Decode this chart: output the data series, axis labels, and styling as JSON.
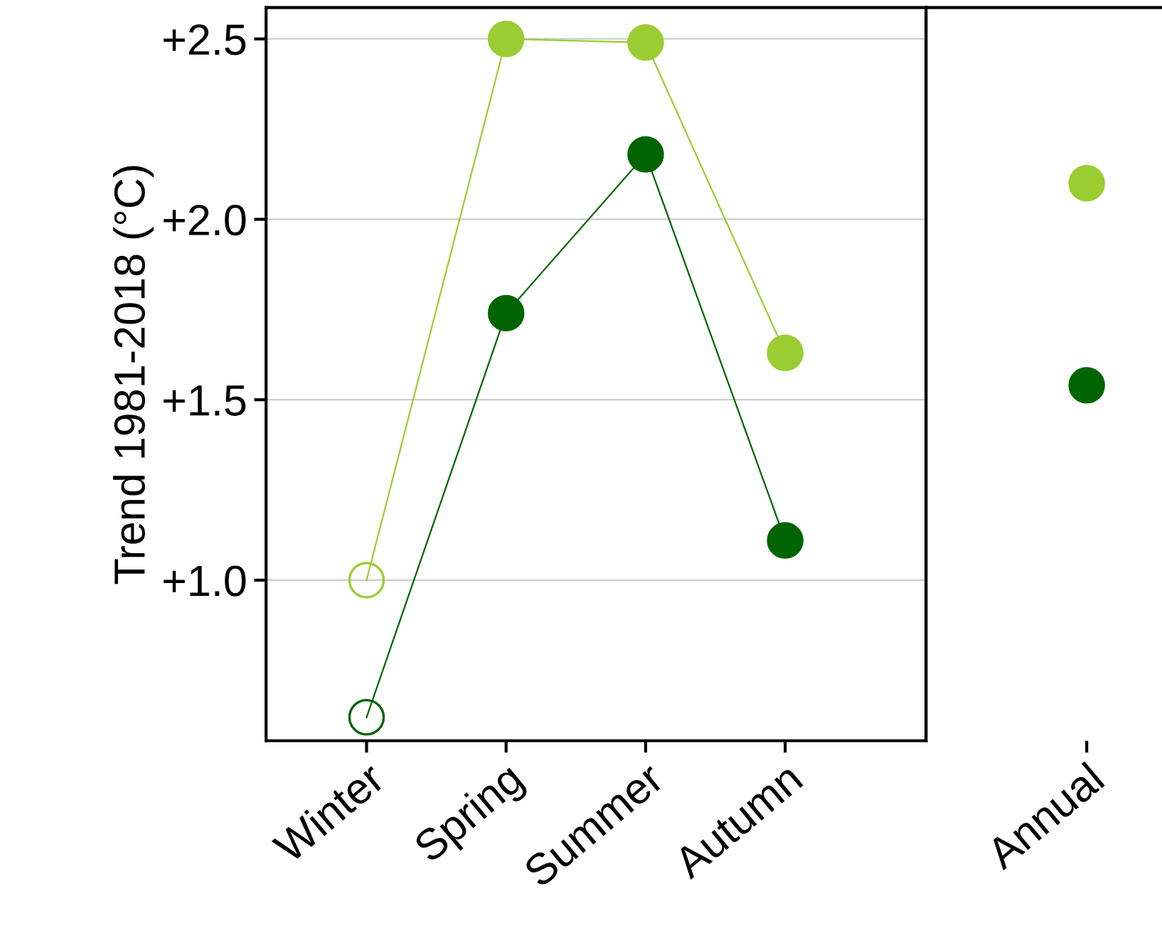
{
  "chart_data": [
    {
      "type": "line",
      "ylabel": "Trend 1981-2018 (°C)",
      "categories": [
        "Winter",
        "Spring",
        "Summer",
        "Autumn"
      ],
      "ylim": [
        0.555,
        2.587
      ],
      "yticks": [
        {
          "value": 1.0,
          "label": "+1.0"
        },
        {
          "value": 1.5,
          "label": "+1.5"
        },
        {
          "value": 2.0,
          "label": "+2.0"
        },
        {
          "value": 2.5,
          "label": "+2.5"
        }
      ],
      "grid": "y",
      "marker": "circle",
      "series": [
        {
          "color": "#9acd32",
          "colors": [
            null,
            "#9acd32",
            "#9acd32",
            "#9acd32"
          ],
          "values": [
            1.0,
            2.5,
            2.49,
            1.63
          ]
        },
        {
          "color": "#006400",
          "colors": [
            null,
            "#006400",
            "#006400",
            "#006400"
          ],
          "values": [
            0.62,
            1.74,
            2.18,
            1.11
          ]
        }
      ]
    },
    {
      "type": "scatter",
      "categories": [
        "Annual"
      ],
      "ylim": [
        0.555,
        2.587
      ],
      "grid": "y",
      "marker": "circle",
      "tick_labels": "x",
      "series": [
        {
          "color": "#9acd32",
          "values": [
            2.1
          ]
        },
        {
          "color": "#006400",
          "values": [
            1.54
          ]
        }
      ]
    }
  ]
}
